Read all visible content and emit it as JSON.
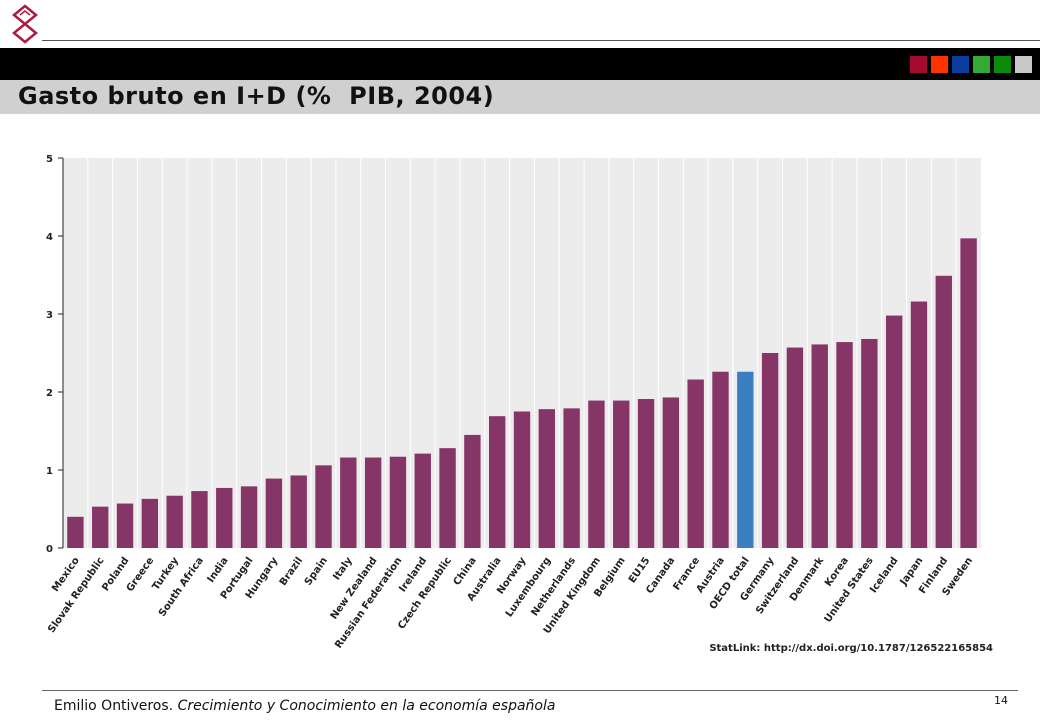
{
  "header": {
    "title": "Gasto bruto en I+D (%  PIB, 2004)",
    "color_squares": [
      "#a50b2e",
      "#ff3300",
      "#0a3d9e",
      "#33aa33",
      "#0b8a0b",
      "#c8c8c8"
    ]
  },
  "chart_data": {
    "type": "bar",
    "categories": [
      "Mexico",
      "Slovak Republic",
      "Poland",
      "Greece",
      "Turkey",
      "South Africa",
      "India",
      "Portugal",
      "Hungary",
      "Brazil",
      "Spain",
      "Italy",
      "New Zealand",
      "Russian Federation",
      "Ireland",
      "Czech Republic",
      "China",
      "Australia",
      "Norway",
      "Luxembourg",
      "Netherlands",
      "United Kingdom",
      "Belgium",
      "EU15",
      "Canada",
      "France",
      "Austria",
      "OECD total",
      "Germany",
      "Switzerland",
      "Denmark",
      "Korea",
      "United States",
      "Iceland",
      "Japan",
      "Finland",
      "Sweden"
    ],
    "values": [
      0.4,
      0.53,
      0.57,
      0.63,
      0.67,
      0.73,
      0.77,
      0.79,
      0.89,
      0.93,
      1.06,
      1.16,
      1.16,
      1.17,
      1.21,
      1.28,
      1.45,
      1.69,
      1.75,
      1.78,
      1.79,
      1.89,
      1.89,
      1.91,
      1.93,
      2.16,
      2.26,
      2.26,
      2.5,
      2.57,
      2.61,
      2.64,
      2.68,
      2.98,
      3.16,
      3.49,
      3.97
    ],
    "highlight_category": "OECD total",
    "colors": {
      "bar": "#853566",
      "highlight": "#3a80c1",
      "plot_bg": "#ececec",
      "grid": "#ffffff"
    },
    "ylim": [
      0,
      5
    ],
    "yticks": [
      "0",
      "1",
      "2",
      "3",
      "4",
      "5"
    ],
    "grid": true,
    "statlink": "StatLink: http://dx.doi.org/10.1787/126522165854"
  },
  "footer": {
    "author": "Emilio Ontiveros.",
    "work": "Crecimiento y Conocimiento en  la economía española",
    "page": "14"
  }
}
